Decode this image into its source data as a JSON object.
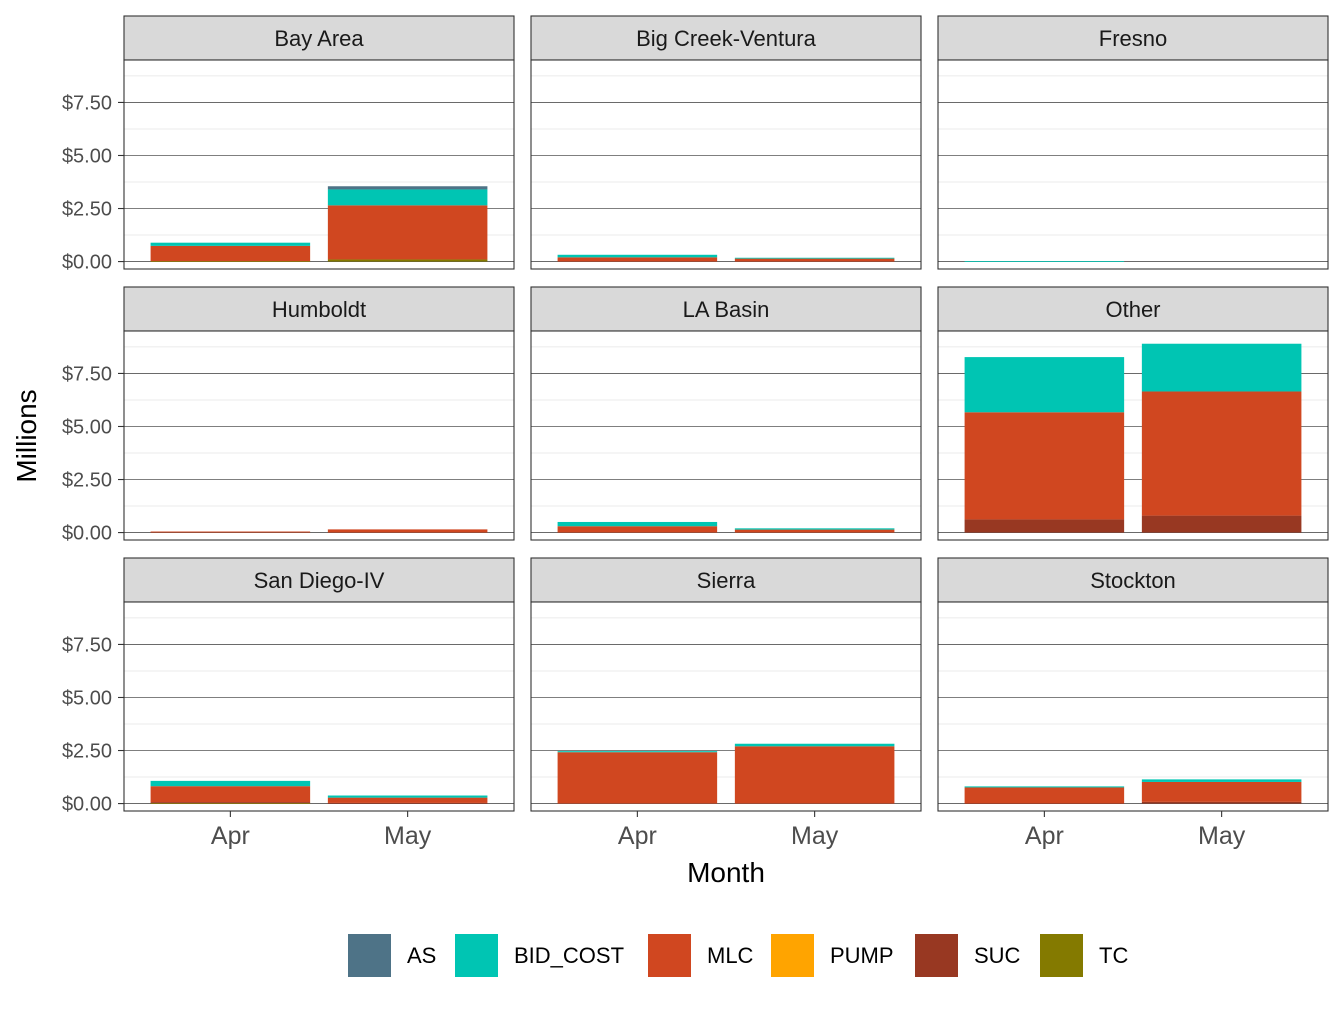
{
  "chart_data": {
    "type": "bar",
    "stacked": true,
    "faceted": true,
    "xlabel": "Month",
    "ylabel": "Millions",
    "ylim": [
      -0.35,
      9.5
    ],
    "y_ticks": [
      0,
      2.5,
      5,
      7.5
    ],
    "y_tick_labels": [
      "$0.00",
      "$2.50",
      "$5.00",
      "$7.50"
    ],
    "categories": [
      "Apr",
      "May"
    ],
    "legend_position": "bottom",
    "legend": [
      {
        "key": "AS",
        "label": "AS",
        "color": "#4E7387"
      },
      {
        "key": "BID_COST",
        "label": "BID_COST",
        "color": "#00C5B3"
      },
      {
        "key": "MLC",
        "label": "MLC",
        "color": "#D04720"
      },
      {
        "key": "PUMP",
        "label": "PUMP",
        "color": "#FFA400"
      },
      {
        "key": "SUC",
        "label": "SUC",
        "color": "#983822"
      },
      {
        "key": "TC",
        "label": "TC",
        "color": "#847A00"
      }
    ],
    "stack_order": [
      "TC",
      "SUC",
      "PUMP",
      "MLC",
      "BID_COST",
      "AS"
    ],
    "panels": [
      {
        "name": "Bay Area",
        "bars": [
          {
            "month": "Apr",
            "values": {
              "AS": 0.0,
              "BID_COST": 0.15,
              "MLC": 0.72,
              "PUMP": 0.0,
              "SUC": 0.0,
              "TC": 0.02
            }
          },
          {
            "month": "May",
            "values": {
              "AS": 0.15,
              "BID_COST": 0.75,
              "MLC": 2.55,
              "PUMP": 0.0,
              "SUC": 0.0,
              "TC": 0.1
            }
          }
        ]
      },
      {
        "name": "Big Creek-Ventura",
        "bars": [
          {
            "month": "Apr",
            "values": {
              "AS": 0.0,
              "BID_COST": 0.12,
              "MLC": 0.2,
              "PUMP": 0.0,
              "SUC": 0.0,
              "TC": 0.0
            }
          },
          {
            "month": "May",
            "values": {
              "AS": 0.0,
              "BID_COST": 0.04,
              "MLC": 0.14,
              "PUMP": 0.0,
              "SUC": 0.0,
              "TC": 0.0
            }
          }
        ]
      },
      {
        "name": "Fresno",
        "bars": [
          {
            "month": "Apr",
            "values": {
              "AS": 0.0,
              "BID_COST": 0.02,
              "MLC": 0.0,
              "PUMP": 0.0,
              "SUC": 0.0,
              "TC": 0.0
            }
          },
          {
            "month": "May",
            "values": {
              "AS": 0.0,
              "BID_COST": 0.0,
              "MLC": 0.0,
              "PUMP": 0.0,
              "SUC": 0.0,
              "TC": 0.0
            }
          }
        ]
      },
      {
        "name": "Humboldt",
        "bars": [
          {
            "month": "Apr",
            "values": {
              "AS": 0.0,
              "BID_COST": 0.0,
              "MLC": 0.05,
              "PUMP": 0.0,
              "SUC": 0.0,
              "TC": 0.0
            }
          },
          {
            "month": "May",
            "values": {
              "AS": 0.0,
              "BID_COST": 0.0,
              "MLC": 0.15,
              "PUMP": 0.0,
              "SUC": 0.0,
              "TC": 0.0
            }
          }
        ]
      },
      {
        "name": "LA Basin",
        "bars": [
          {
            "month": "Apr",
            "values": {
              "AS": 0.0,
              "BID_COST": 0.2,
              "MLC": 0.3,
              "PUMP": 0.0,
              "SUC": 0.0,
              "TC": 0.0
            }
          },
          {
            "month": "May",
            "values": {
              "AS": 0.0,
              "BID_COST": 0.06,
              "MLC": 0.14,
              "PUMP": 0.0,
              "SUC": 0.0,
              "TC": 0.0
            }
          }
        ]
      },
      {
        "name": "Other",
        "bars": [
          {
            "month": "Apr",
            "values": {
              "AS": 0.0,
              "BID_COST": 2.6,
              "MLC": 5.05,
              "PUMP": 0.0,
              "SUC": 0.62,
              "TC": 0.0
            }
          },
          {
            "month": "May",
            "values": {
              "AS": 0.0,
              "BID_COST": 2.25,
              "MLC": 5.85,
              "PUMP": 0.0,
              "SUC": 0.8,
              "TC": 0.0
            }
          }
        ]
      },
      {
        "name": "San Diego-IV",
        "bars": [
          {
            "month": "Apr",
            "values": {
              "AS": 0.0,
              "BID_COST": 0.25,
              "MLC": 0.75,
              "PUMP": 0.0,
              "SUC": 0.05,
              "TC": 0.02
            }
          },
          {
            "month": "May",
            "values": {
              "AS": 0.0,
              "BID_COST": 0.1,
              "MLC": 0.25,
              "PUMP": 0.0,
              "SUC": 0.03,
              "TC": 0.0
            }
          }
        ]
      },
      {
        "name": "Sierra",
        "bars": [
          {
            "month": "Apr",
            "values": {
              "AS": 0.0,
              "BID_COST": 0.05,
              "MLC": 2.42,
              "PUMP": 0.0,
              "SUC": 0.0,
              "TC": 0.0
            }
          },
          {
            "month": "May",
            "values": {
              "AS": 0.0,
              "BID_COST": 0.12,
              "MLC": 2.7,
              "PUMP": 0.0,
              "SUC": 0.0,
              "TC": 0.0
            }
          }
        ]
      },
      {
        "name": "Stockton",
        "bars": [
          {
            "month": "Apr",
            "values": {
              "AS": 0.0,
              "BID_COST": 0.05,
              "MLC": 0.74,
              "PUMP": 0.0,
              "SUC": 0.02,
              "TC": 0.0
            }
          },
          {
            "month": "May",
            "values": {
              "AS": 0.0,
              "BID_COST": 0.12,
              "MLC": 0.94,
              "PUMP": 0.0,
              "SUC": 0.08,
              "TC": 0.0
            }
          }
        ]
      }
    ]
  }
}
